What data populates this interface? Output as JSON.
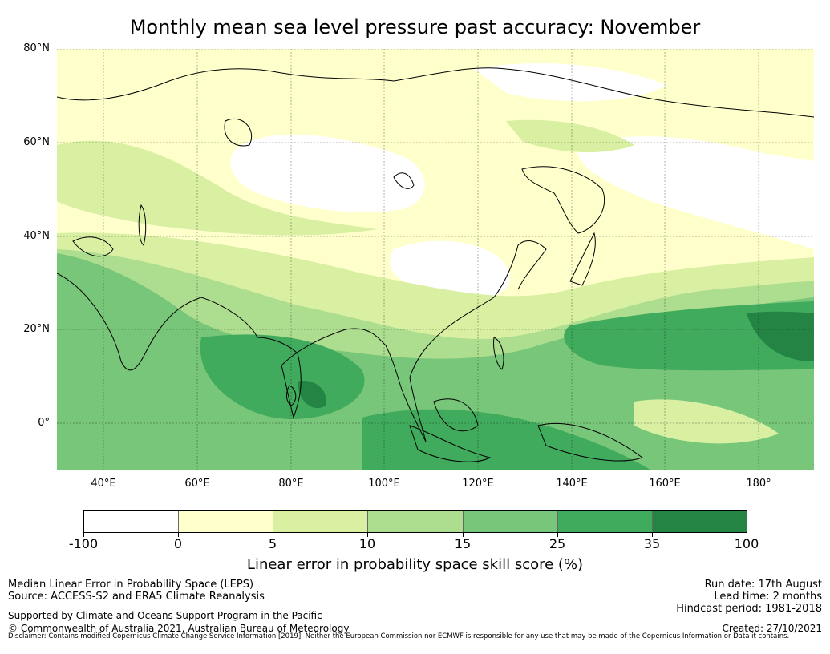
{
  "title": "Monthly mean sea level pressure past accuracy: November",
  "map": {
    "lat_labels": [
      "80°N",
      "60°N",
      "40°N",
      "20°N",
      "0°"
    ],
    "lon_labels": [
      "40°E",
      "60°E",
      "80°E",
      "100°E",
      "120°E",
      "140°E",
      "160°E",
      "180°"
    ],
    "extent": {
      "lon_min": 30,
      "lon_max": 192,
      "lat_min": -10,
      "lat_max": 80
    }
  },
  "colorbar": {
    "label": "Linear error in probability space skill score (%)",
    "ticks": [
      "-100",
      "0",
      "5",
      "10",
      "15",
      "25",
      "35",
      "100"
    ],
    "colors": [
      "#ffffff",
      "#ffffcc",
      "#d9f0a3",
      "#addd8e",
      "#78c679",
      "#41ab5d",
      "#238443"
    ]
  },
  "footer": {
    "left_line1": "Median Linear Error in Probability Space (LEPS)",
    "left_line2": "Source: ACCESS-S2 and ERA5 Climate Reanalysis",
    "left_line3": "Supported by Climate and Oceans Support Program in the Pacific",
    "left_line4": "© Commonwealth of Australia 2021, Australian Bureau of Meteorology",
    "right_line1": "Run date: 17th August",
    "right_line2": "Lead time: 2 months",
    "right_line3": "Hindcast period: 1981-2018",
    "right_line4": "Created: 27/10/2021",
    "disclaimer": "Disclaimer: Contains modified Copernicus Climate Change Service Information [2019]. Neither the European Commission nor ECMWF is responsible for any use that may be made of the Copernicus Information or Data it contains."
  }
}
